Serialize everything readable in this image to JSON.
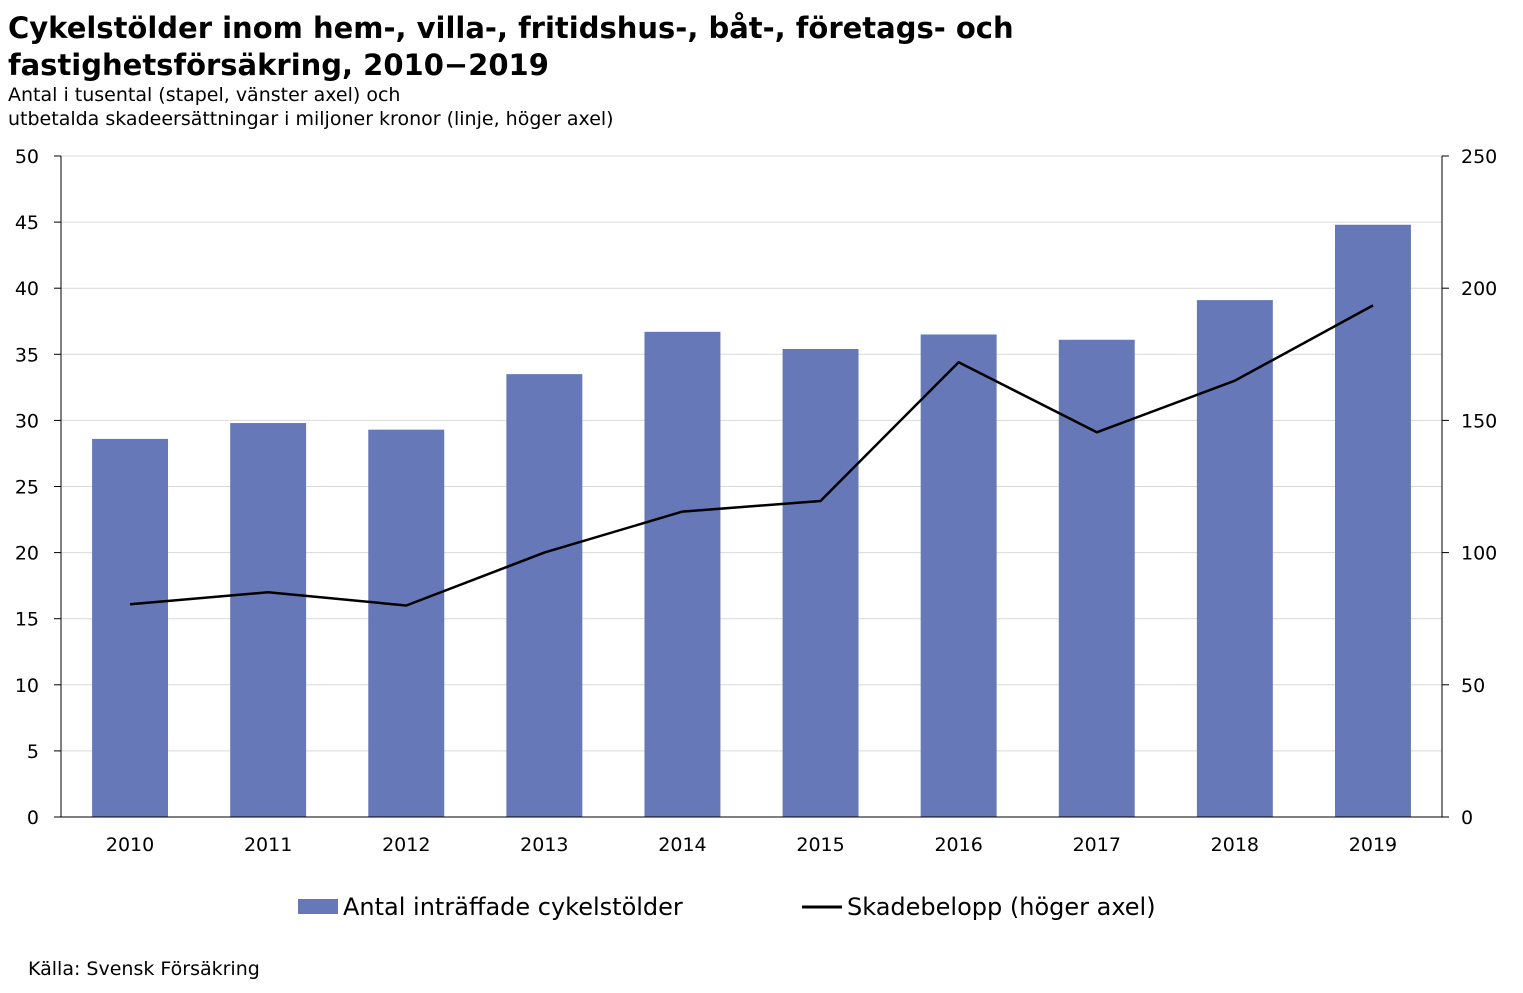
{
  "title_line1": "Cykelstölder inom hem-, villa-, fritidshus-, båt-, företags- och",
  "title_line2": "fastighetsförsäkring, 2010−2019",
  "subtitle_line1": "Antal i tusental (stapel, vänster axel) och",
  "subtitle_line2": "utbetalda skadeersättningar i miljoner kronor (linje, höger axel)",
  "source": "Källa: Svensk Försäkring",
  "colors": {
    "bar": "#6678b8",
    "line": "#000000",
    "grid": "#d9d9d9"
  },
  "chart_data": {
    "type": "bar",
    "categories": [
      "2010",
      "2011",
      "2012",
      "2013",
      "2014",
      "2015",
      "2016",
      "2017",
      "2018",
      "2019"
    ],
    "series": [
      {
        "name": "Antal inträffade cykelstölder",
        "type": "bar",
        "axis": "left",
        "values": [
          28.6,
          29.8,
          29.3,
          33.5,
          36.7,
          35.4,
          36.5,
          36.1,
          39.1,
          44.8
        ]
      },
      {
        "name": "Skadebelopp (höger axel)",
        "type": "line",
        "axis": "right",
        "values": [
          80.5,
          85,
          80,
          100,
          115.5,
          119.5,
          172,
          145.5,
          165,
          193.5
        ]
      }
    ],
    "left_axis": {
      "ylim": [
        0,
        50
      ],
      "ticks": [
        "0",
        "5",
        "10",
        "15",
        "20",
        "25",
        "30",
        "35",
        "40",
        "45",
        "50"
      ]
    },
    "right_axis": {
      "ylim": [
        0,
        250
      ],
      "ticks": [
        "0",
        "50",
        "100",
        "150",
        "200",
        "250"
      ]
    },
    "grid": true,
    "legend_position": "bottom"
  }
}
